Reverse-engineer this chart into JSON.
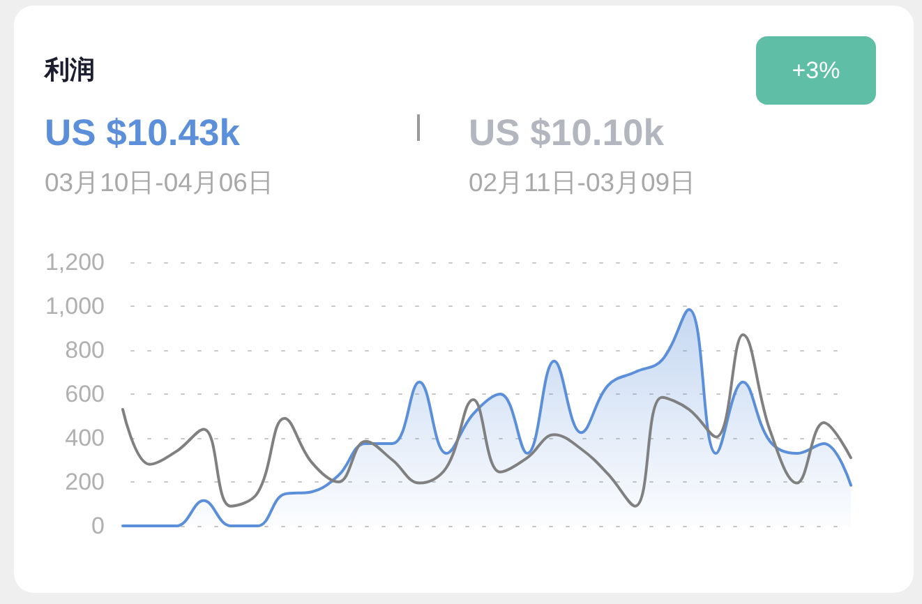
{
  "chart_data": {
    "type": "line",
    "title": "利润",
    "annotations": [
      "US $10.43k",
      "03月10日-04月06日",
      "US $10.10k",
      "02月11日-03月09日",
      "+3%"
    ],
    "categories": [
      null,
      null,
      null,
      null,
      null,
      null,
      null,
      null,
      null,
      null,
      null,
      null,
      null,
      null,
      null,
      null,
      null,
      null,
      null,
      null,
      null,
      null,
      null,
      null,
      null,
      null,
      null,
      null
    ],
    "series": [
      {
        "type": "area",
        "color": "#5b8fd9",
        "values": [
          0,
          0,
          0,
          115,
          0,
          0,
          145,
          155,
          230,
          375,
          375,
          655,
          330,
          510,
          600,
          330,
          750,
          425,
          640,
          700,
          755,
          985,
          330,
          655,
          385,
          330,
          375,
          185
        ]
      },
      {
        "color": "#808080",
        "values": [
          530,
          280,
          340,
          440,
          90,
          150,
          490,
          290,
          200,
          385,
          300,
          195,
          265,
          575,
          245,
          310,
          415,
          350,
          235,
          90,
          585,
          530,
          405,
          870,
          435,
          195,
          470,
          310
        ]
      }
    ],
    "ylim": [
      0,
      1200
    ],
    "yticks": [
      0,
      200,
      400,
      600,
      800,
      {
        "value": 1000,
        "label": "1,000"
      },
      {
        "value": 1200,
        "label": "1,200"
      }
    ],
    "grid": "y",
    "tick_labels": "y",
    "marker": "none"
  }
}
